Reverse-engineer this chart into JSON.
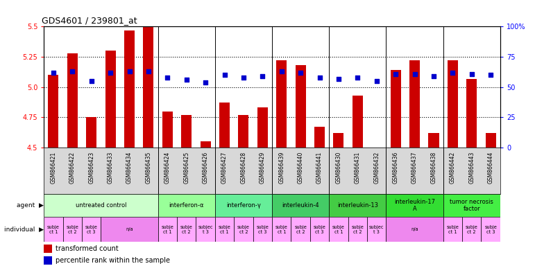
{
  "title": "GDS4601 / 239801_at",
  "samples": [
    "GSM866421",
    "GSM866422",
    "GSM866423",
    "GSM866433",
    "GSM866434",
    "GSM866435",
    "GSM866424",
    "GSM866425",
    "GSM866426",
    "GSM866427",
    "GSM866428",
    "GSM866429",
    "GSM866439",
    "GSM866440",
    "GSM866441",
    "GSM866430",
    "GSM866431",
    "GSM866432",
    "GSM866436",
    "GSM866437",
    "GSM866438",
    "GSM866442",
    "GSM866443",
    "GSM866444"
  ],
  "bar_values": [
    5.1,
    5.28,
    4.75,
    5.3,
    5.47,
    5.5,
    4.8,
    4.77,
    4.55,
    4.87,
    4.77,
    4.83,
    5.22,
    5.18,
    4.67,
    4.62,
    4.93,
    4.5,
    5.14,
    5.22,
    4.62,
    5.22,
    5.07,
    4.62
  ],
  "percentile_values": [
    62,
    63,
    55,
    62,
    63,
    63,
    58,
    56,
    54,
    60,
    58,
    59,
    63,
    62,
    58,
    57,
    58,
    55,
    61,
    61,
    59,
    62,
    61,
    60
  ],
  "ymin": 4.5,
  "ymax": 5.5,
  "yticks": [
    4.5,
    4.75,
    5.0,
    5.25,
    5.5
  ],
  "right_yticks": [
    0,
    25,
    50,
    75,
    100
  ],
  "bar_color": "#cc0000",
  "dot_color": "#0000cc",
  "agent_groups": [
    {
      "label": "untreated control",
      "start": 0,
      "end": 6,
      "color": "#ccffcc"
    },
    {
      "label": "interferon-α",
      "start": 6,
      "end": 9,
      "color": "#99ff99"
    },
    {
      "label": "interferon-γ",
      "start": 9,
      "end": 12,
      "color": "#66ee99"
    },
    {
      "label": "interleukin-4",
      "start": 12,
      "end": 15,
      "color": "#44cc66"
    },
    {
      "label": "interleukin-13",
      "start": 15,
      "end": 18,
      "color": "#44cc44"
    },
    {
      "label": "interleukin-17\nA",
      "start": 18,
      "end": 21,
      "color": "#33dd33"
    },
    {
      "label": "tumor necrosis\nfactor",
      "start": 21,
      "end": 24,
      "color": "#44ee44"
    }
  ],
  "individual_groups": [
    {
      "label": "subje\nct 1",
      "start": 0,
      "end": 1,
      "color": "#ffaaff"
    },
    {
      "label": "subje\nct 2",
      "start": 1,
      "end": 2,
      "color": "#ffaaff"
    },
    {
      "label": "subje\nct 3",
      "start": 2,
      "end": 3,
      "color": "#ffaaff"
    },
    {
      "label": "n/a",
      "start": 3,
      "end": 6,
      "color": "#ee88ee"
    },
    {
      "label": "subje\nct 1",
      "start": 6,
      "end": 7,
      "color": "#ffaaff"
    },
    {
      "label": "subje\nct 2",
      "start": 7,
      "end": 8,
      "color": "#ffaaff"
    },
    {
      "label": "subjec\nt 3",
      "start": 8,
      "end": 9,
      "color": "#ffaaff"
    },
    {
      "label": "subje\nct 1",
      "start": 9,
      "end": 10,
      "color": "#ffaaff"
    },
    {
      "label": "subje\nct 2",
      "start": 10,
      "end": 11,
      "color": "#ffaaff"
    },
    {
      "label": "subje\nct 3",
      "start": 11,
      "end": 12,
      "color": "#ffaaff"
    },
    {
      "label": "subje\nct 1",
      "start": 12,
      "end": 13,
      "color": "#ffaaff"
    },
    {
      "label": "subje\nct 2",
      "start": 13,
      "end": 14,
      "color": "#ffaaff"
    },
    {
      "label": "subje\nct 3",
      "start": 14,
      "end": 15,
      "color": "#ffaaff"
    },
    {
      "label": "subje\nct 1",
      "start": 15,
      "end": 16,
      "color": "#ffaaff"
    },
    {
      "label": "subje\nct 2",
      "start": 16,
      "end": 17,
      "color": "#ffaaff"
    },
    {
      "label": "subjec\nt 3",
      "start": 17,
      "end": 18,
      "color": "#ffaaff"
    },
    {
      "label": "n/a",
      "start": 18,
      "end": 21,
      "color": "#ee88ee"
    },
    {
      "label": "subje\nct 1",
      "start": 21,
      "end": 22,
      "color": "#ffaaff"
    },
    {
      "label": "subje\nct 2",
      "start": 22,
      "end": 23,
      "color": "#ffaaff"
    },
    {
      "label": "subje\nct 3",
      "start": 23,
      "end": 24,
      "color": "#ffaaff"
    }
  ],
  "background_color": "#ffffff",
  "group_separators": [
    6,
    9,
    12,
    15,
    18,
    21
  ]
}
